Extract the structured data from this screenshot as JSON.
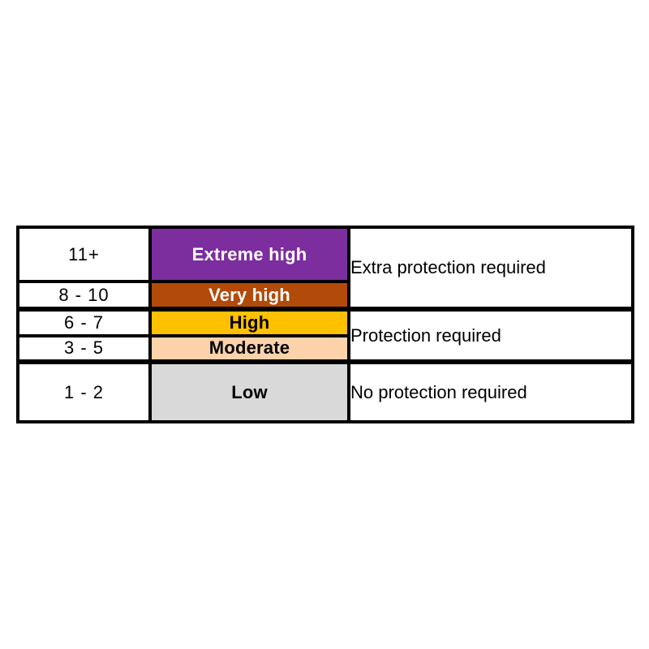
{
  "chart_data": {
    "type": "table",
    "rows": [
      {
        "range": "11+",
        "level": "Extreme high",
        "level_bg": "#7C2D9E",
        "level_color": "#FFFFFF"
      },
      {
        "range": "8 - 10",
        "level": "Very high",
        "level_bg": "#B24A09",
        "level_color": "#FFFFFF"
      },
      {
        "range": "6 - 7",
        "level": "High",
        "level_bg": "#FFC000",
        "level_color": "#000000"
      },
      {
        "range": "3 - 5",
        "level": "Moderate",
        "level_bg": "#FCD2AB",
        "level_color": "#000000"
      },
      {
        "range": "1 - 2",
        "level": "Low",
        "level_bg": "#D9D9D9",
        "level_color": "#000000"
      }
    ],
    "groups": [
      {
        "description": "Extra protection required",
        "row_span": [
          1,
          2
        ]
      },
      {
        "description": "Protection required",
        "row_span": [
          3,
          4
        ]
      },
      {
        "description": "No protection required",
        "row_span": [
          5,
          5
        ]
      }
    ],
    "layout": {
      "border_color": "#000000",
      "page_background": "#FFFFFF",
      "grid": "on",
      "legend_position": "none"
    }
  }
}
